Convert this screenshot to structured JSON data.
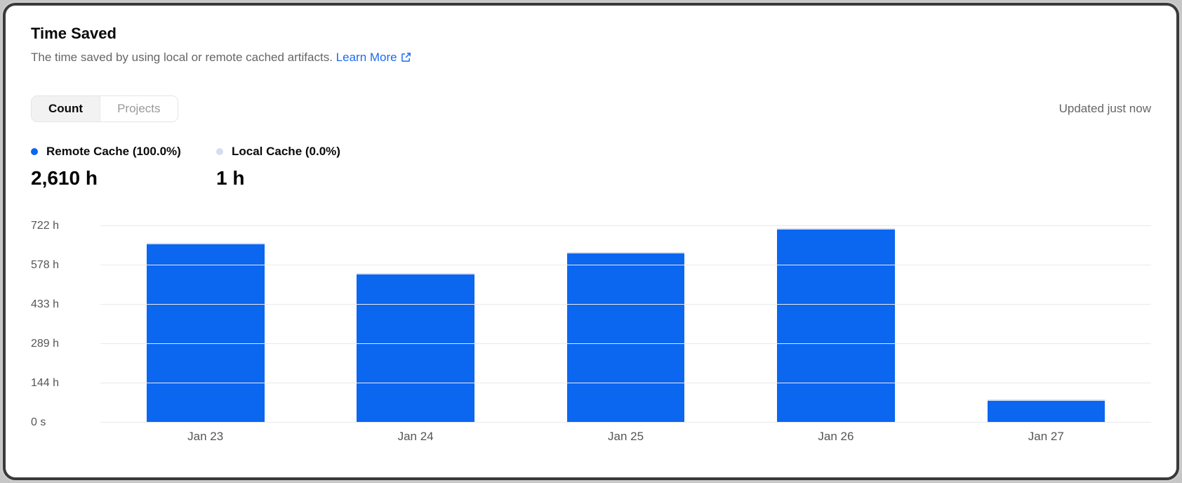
{
  "card": {
    "title": "Time Saved",
    "subtitle": "The time saved by using local or remote cached artifacts.",
    "link_label": "Learn More",
    "updated": "Updated just now"
  },
  "tabs": [
    {
      "label": "Count",
      "active": true
    },
    {
      "label": "Projects",
      "active": false
    }
  ],
  "legend": [
    {
      "label": "Remote Cache (100.0%)",
      "total": "2,610 h",
      "color": "#0b66f0"
    },
    {
      "label": "Local Cache (0.0%)",
      "total": "1 h",
      "color": "#d6ddf0"
    }
  ],
  "colors": {
    "accent_blue": "#0b66f0",
    "local_cache_blue": "#d6ddf0",
    "link_blue": "#1b6bf2",
    "gridline": "#e9e9e9",
    "text_secondary": "#666666",
    "text_muted": "#999999"
  },
  "chart_data": {
    "type": "bar",
    "title": "Time Saved",
    "categories": [
      "Jan 23",
      "Jan 24",
      "Jan 25",
      "Jan 26",
      "Jan 27"
    ],
    "series": [
      {
        "name": "Remote Cache",
        "values": [
          654,
          544,
          622,
          710,
          80
        ],
        "color": "#0b66f0"
      },
      {
        "name": "Local Cache",
        "values": [
          0.2,
          0.2,
          0.2,
          0.2,
          0.2
        ],
        "color": "#d6ddf0"
      }
    ],
    "unit": "h",
    "xlabel": "",
    "ylabel": "",
    "ylim": [
      0,
      722
    ],
    "y_tick_values": [
      0,
      144,
      289,
      433,
      578,
      722
    ],
    "y_ticks": [
      "0 s",
      "144 h",
      "289 h",
      "433 h",
      "578 h",
      "722 h"
    ],
    "grid": true,
    "stacked": true,
    "legend_position": "top"
  }
}
